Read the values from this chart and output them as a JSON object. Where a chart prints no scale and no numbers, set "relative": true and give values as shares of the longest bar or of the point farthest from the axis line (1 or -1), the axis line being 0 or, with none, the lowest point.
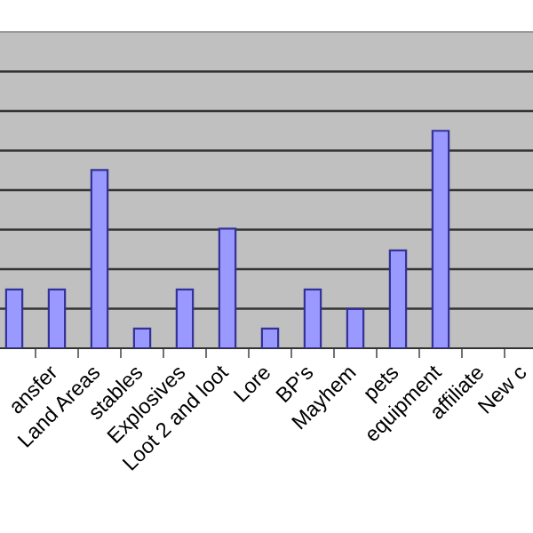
{
  "chart_data": {
    "type": "bar",
    "relative": true,
    "grid": "y",
    "color": "#9999ff",
    "categories": [
      null,
      "ansfer",
      "Land Areas",
      "stables",
      "Explosives",
      "Loot 2 and loot",
      "Lore",
      "BP's",
      "Mayhem",
      "pets",
      "equipment",
      "affiliate",
      "New c"
    ],
    "values": [
      0.27,
      0.27,
      0.82,
      0.09,
      0.27,
      0.55,
      0.09,
      0.27,
      0.18,
      0.45,
      1,
      null,
      null
    ]
  }
}
